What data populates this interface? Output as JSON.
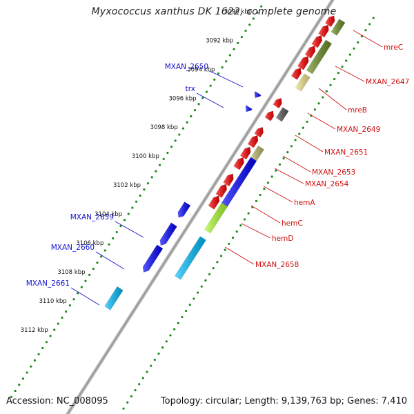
{
  "title": "Myxococcus xanthus DK 1622, complete genome",
  "footer": {
    "accession": "Accession: NC_008095",
    "summary": "Topology: circular; Length: 9,139,763 bp; Genes: 7,410"
  },
  "colors": {
    "backbone": "#9a9a9a",
    "scale_dots": "#1e8a1e",
    "label_forward": "#1111cc",
    "label_reverse": "#cc1111"
  },
  "scale_ticks": [
    "3090 kbp",
    "3092 kbp",
    "3094 kbp",
    "3096 kbp",
    "3098 kbp",
    "3100 kbp",
    "3102 kbp",
    "3104 kbp",
    "3106 kbp",
    "3108 kbp",
    "3110 kbp",
    "3112 kbp"
  ],
  "features": [
    {
      "strand": "-",
      "row": 1,
      "color": "#ff0000",
      "arrow": "start"
    },
    {
      "strand": "-",
      "row": 1,
      "color": "#ff0000",
      "arrow": "start"
    },
    {
      "strand": "-",
      "row": 1,
      "color": "#ff0000",
      "arrow": "start"
    },
    {
      "strand": "-",
      "row": 1,
      "color": "#ff0000",
      "arrow": "start"
    },
    {
      "strand": "-",
      "row": 1,
      "color": "#ff0000",
      "arrow": "start"
    },
    {
      "strand": "-",
      "row": 1,
      "color": "#ff0000",
      "arrow": "start"
    },
    {
      "strand": "-",
      "row": 1,
      "color": "#ff0000",
      "arrow": "start"
    },
    {
      "strand": "-",
      "row": 1,
      "color": "#ff0000",
      "arrow": "start"
    },
    {
      "strand": "-",
      "row": 1,
      "color": "#ff0000",
      "arrow": "start"
    },
    {
      "strand": "-",
      "row": 1,
      "color": "#ff0000",
      "arrow": "start"
    },
    {
      "strand": "-",
      "row": 1,
      "color": "#ff0000",
      "arrow": "start"
    },
    {
      "strand": "-",
      "row": 1,
      "color": "#ff0000",
      "arrow": "start"
    },
    {
      "strand": "-",
      "row": 1,
      "color": "#ff0000",
      "arrow": "start"
    },
    {
      "strand": "-",
      "row": 1,
      "color": "#ff0000",
      "arrow": "start"
    },
    {
      "strand": "-",
      "row": 1,
      "color": "#ff0000",
      "arrow": "start"
    },
    {
      "strand": "-",
      "row": 2,
      "color": "#6b8e23",
      "arrow": "none"
    },
    {
      "strand": "-",
      "row": 2,
      "color": "#6b8e23",
      "arrow": "none"
    },
    {
      "strand": "-",
      "row": 2,
      "color": "#f0e68c",
      "arrow": "none"
    },
    {
      "strand": "-",
      "row": 2,
      "color": "#555555",
      "arrow": "none"
    },
    {
      "strand": "-",
      "row": 2,
      "color": "#bdb76b",
      "arrow": "none"
    },
    {
      "strand": "-",
      "row": 2,
      "color": "#0000ff",
      "arrow": "none"
    },
    {
      "strand": "-",
      "row": 2,
      "color": "#adff2f",
      "arrow": "none"
    },
    {
      "strand": "-",
      "row": 2,
      "color": "#00bfff",
      "arrow": "none"
    },
    {
      "strand": "+",
      "row": 1,
      "color": "#0000ff",
      "arrow": "end"
    },
    {
      "strand": "+",
      "row": 1,
      "color": "#0000ff",
      "arrow": "end"
    },
    {
      "strand": "+",
      "row": 1,
      "color": "#0000ff",
      "arrow": "end"
    },
    {
      "strand": "+",
      "row": 1,
      "color": "#0000ff",
      "arrow": "end"
    },
    {
      "strand": "+",
      "row": 1,
      "color": "#0000ff",
      "arrow": "end"
    },
    {
      "strand": "+",
      "row": 2,
      "color": "#00bfff",
      "arrow": "none"
    }
  ],
  "labels_reverse": [
    "mreC",
    "MXAN_2647",
    "mreB",
    "MXAN_2649",
    "MXAN_2651",
    "MXAN_2653",
    "MXAN_2654",
    "hemA",
    "hemC",
    "hemD",
    "MXAN_2658"
  ],
  "labels_forward": [
    "MXAN_2650",
    "trx",
    "MXAN_2659",
    "MXAN_2660",
    "MXAN_2661"
  ]
}
